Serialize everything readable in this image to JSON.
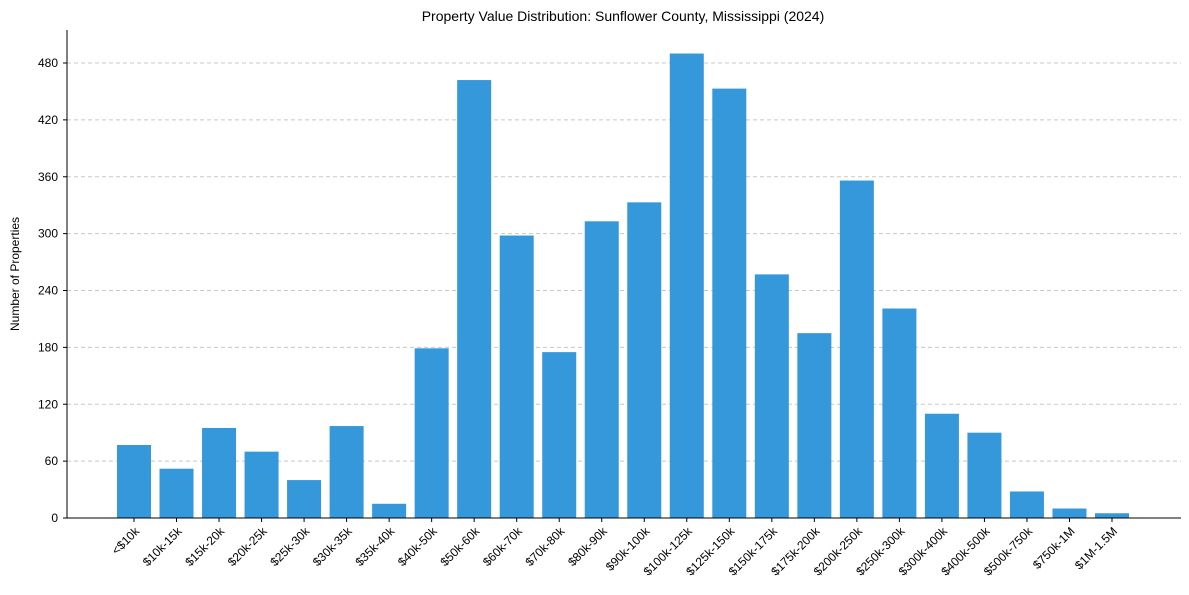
{
  "chart_data": {
    "type": "bar",
    "title": "Property Value Distribution: Sunflower County, Mississippi (2024)",
    "xlabel": "",
    "ylabel": "Number of Properties",
    "categories": [
      "<$10k",
      "$10k-15k",
      "$15k-20k",
      "$20k-25k",
      "$25k-30k",
      "$30k-35k",
      "$35k-40k",
      "$40k-50k",
      "$50k-60k",
      "$60k-70k",
      "$70k-80k",
      "$80k-90k",
      "$90k-100k",
      "$100k-125k",
      "$125k-150k",
      "$150k-175k",
      "$175k-200k",
      "$200k-250k",
      "$250k-300k",
      "$300k-400k",
      "$400k-500k",
      "$500k-750k",
      "$750k-1M",
      "$1M-1.5M"
    ],
    "values": [
      77,
      52,
      95,
      70,
      40,
      97,
      15,
      179,
      462,
      298,
      175,
      313,
      333,
      490,
      453,
      257,
      195,
      356,
      221,
      110,
      90,
      28,
      10,
      5
    ],
    "yticks": [
      0,
      60,
      120,
      180,
      240,
      300,
      360,
      420,
      480
    ],
    "ylim": [
      0,
      515
    ],
    "grid": "y-dashed",
    "legend": "none",
    "bar_color": "#3498db"
  }
}
